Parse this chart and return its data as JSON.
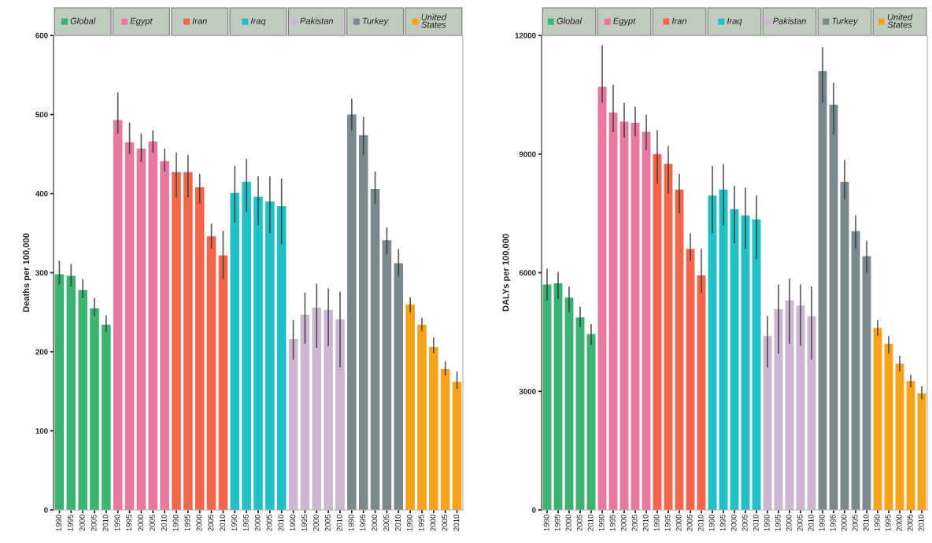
{
  "chart_data": [
    {
      "type": "bar",
      "legend": "top",
      "ylabel": "Deaths per 100,000",
      "categories": [
        "1990",
        "1995",
        "2000",
        "2005",
        "2010",
        "1990",
        "1995",
        "2000",
        "2005",
        "2010",
        "1990",
        "1995",
        "2000",
        "2005",
        "2010",
        "1990",
        "1995",
        "2000",
        "2005",
        "2010",
        "1990",
        "1995",
        "2000",
        "2005",
        "2010",
        "1990",
        "1995",
        "2000",
        "2005",
        "2010",
        "1990",
        "1995",
        "2000",
        "2005",
        "2010"
      ],
      "ylim": [
        0,
        600
      ],
      "yticks": [
        0,
        100,
        200,
        300,
        400,
        500,
        600
      ],
      "series": [
        {
          "name": "Global",
          "color": "#3cb371",
          "values": [
            298,
            296,
            278,
            255,
            234,
            null,
            null,
            null,
            null,
            null,
            null,
            null,
            null,
            null,
            null,
            null,
            null,
            null,
            null,
            null,
            null,
            null,
            null,
            null,
            null,
            null,
            null,
            null,
            null,
            null,
            null,
            null,
            null,
            null,
            null
          ],
          "errors": [
            [
              285,
              315
            ],
            [
              282,
              311
            ],
            [
              268,
              292
            ],
            [
              245,
              268
            ],
            [
              225,
              246
            ],
            null,
            null,
            null,
            null,
            null,
            null,
            null,
            null,
            null,
            null,
            null,
            null,
            null,
            null,
            null,
            null,
            null,
            null,
            null,
            null,
            null,
            null,
            null,
            null,
            null,
            null,
            null,
            null,
            null,
            null
          ]
        },
        {
          "name": "Egypt",
          "color": "#e8799e",
          "values": [
            null,
            null,
            null,
            null,
            null,
            493,
            465,
            457,
            466,
            441,
            null,
            null,
            null,
            null,
            null,
            null,
            null,
            null,
            null,
            null,
            null,
            null,
            null,
            null,
            null,
            null,
            null,
            null,
            null,
            null,
            null,
            null,
            null,
            null,
            null
          ],
          "errors": [
            null,
            null,
            null,
            null,
            null,
            [
              476,
              528
            ],
            [
              450,
              490
            ],
            [
              440,
              476
            ],
            [
              452,
              480
            ],
            [
              428,
              457
            ],
            null,
            null,
            null,
            null,
            null,
            null,
            null,
            null,
            null,
            null,
            null,
            null,
            null,
            null,
            null,
            null,
            null,
            null,
            null,
            null,
            null,
            null,
            null,
            null,
            null
          ]
        },
        {
          "name": "Iran",
          "color": "#f2674a",
          "values": [
            null,
            null,
            null,
            null,
            null,
            null,
            null,
            null,
            null,
            null,
            427,
            427,
            408,
            346,
            322,
            null,
            null,
            null,
            null,
            null,
            null,
            null,
            null,
            null,
            null,
            null,
            null,
            null,
            null,
            null,
            null,
            null,
            null,
            null,
            null
          ],
          "errors": [
            null,
            null,
            null,
            null,
            null,
            null,
            null,
            null,
            null,
            null,
            [
              395,
              452
            ],
            [
              395,
              449
            ],
            [
              387,
              425
            ],
            [
              330,
              362
            ],
            [
              292,
              353
            ],
            null,
            null,
            null,
            null,
            null,
            null,
            null,
            null,
            null,
            null,
            null,
            null,
            null,
            null,
            null,
            null,
            null,
            null,
            null,
            null
          ]
        },
        {
          "name": "Iraq",
          "color": "#1fc1c6",
          "values": [
            null,
            null,
            null,
            null,
            null,
            null,
            null,
            null,
            null,
            null,
            null,
            null,
            null,
            null,
            null,
            401,
            415,
            396,
            390,
            384,
            null,
            null,
            null,
            null,
            null,
            null,
            null,
            null,
            null,
            null,
            null,
            null,
            null,
            null,
            null
          ],
          "errors": [
            null,
            null,
            null,
            null,
            null,
            null,
            null,
            null,
            null,
            null,
            null,
            null,
            null,
            null,
            null,
            [
              363,
              435
            ],
            [
              377,
              444
            ],
            [
              360,
              422
            ],
            [
              350,
              422
            ],
            [
              336,
              419
            ],
            null,
            null,
            null,
            null,
            null,
            null,
            null,
            null,
            null,
            null,
            null,
            null,
            null,
            null,
            null
          ]
        },
        {
          "name": "Pakistan",
          "color": "#cdb6d2",
          "values": [
            null,
            null,
            null,
            null,
            null,
            null,
            null,
            null,
            null,
            null,
            null,
            null,
            null,
            null,
            null,
            null,
            null,
            null,
            null,
            null,
            216,
            247,
            256,
            253,
            241,
            null,
            null,
            null,
            null,
            null,
            null,
            null,
            null,
            null,
            null
          ],
          "errors": [
            null,
            null,
            null,
            null,
            null,
            null,
            null,
            null,
            null,
            null,
            null,
            null,
            null,
            null,
            null,
            null,
            null,
            null,
            null,
            null,
            [
              190,
              240
            ],
            [
              210,
              275
            ],
            [
              205,
              286
            ],
            [
              207,
              280
            ],
            [
              180,
              276
            ],
            null,
            null,
            null,
            null,
            null,
            null,
            null,
            null,
            null,
            null
          ]
        },
        {
          "name": "Turkey",
          "color": "#7a8a8c",
          "values": [
            null,
            null,
            null,
            null,
            null,
            null,
            null,
            null,
            null,
            null,
            null,
            null,
            null,
            null,
            null,
            null,
            null,
            null,
            null,
            null,
            null,
            null,
            null,
            null,
            null,
            500,
            474,
            406,
            341,
            312,
            null,
            null,
            null,
            null,
            null
          ],
          "errors": [
            null,
            null,
            null,
            null,
            null,
            null,
            null,
            null,
            null,
            null,
            null,
            null,
            null,
            null,
            null,
            null,
            null,
            null,
            null,
            null,
            null,
            null,
            null,
            null,
            null,
            [
              480,
              520
            ],
            [
              448,
              497
            ],
            [
              387,
              428
            ],
            [
              323,
              357
            ],
            [
              295,
              330
            ],
            null,
            null,
            null,
            null,
            null
          ]
        },
        {
          "name": "United States",
          "color": "#f7a21b",
          "values": [
            null,
            null,
            null,
            null,
            null,
            null,
            null,
            null,
            null,
            null,
            null,
            null,
            null,
            null,
            null,
            null,
            null,
            null,
            null,
            null,
            null,
            null,
            null,
            null,
            null,
            null,
            null,
            null,
            null,
            null,
            260,
            234,
            206,
            178,
            162
          ],
          "errors": [
            null,
            null,
            null,
            null,
            null,
            null,
            null,
            null,
            null,
            null,
            null,
            null,
            null,
            null,
            null,
            null,
            null,
            null,
            null,
            null,
            null,
            null,
            null,
            null,
            null,
            null,
            null,
            null,
            null,
            null,
            [
              250,
              269
            ],
            [
              226,
              243
            ],
            [
              198,
              218
            ],
            [
              170,
              188
            ],
            [
              153,
              175
            ]
          ]
        }
      ]
    },
    {
      "type": "bar",
      "legend": "top",
      "ylabel": "DALYs per 100,000",
      "categories": [
        "1990",
        "1995",
        "2000",
        "2005",
        "2010",
        "1990",
        "1995",
        "2000",
        "2005",
        "2010",
        "1990",
        "1995",
        "2000",
        "2005",
        "2010",
        "1990",
        "1995",
        "2000",
        "2005",
        "2010",
        "1990",
        "1995",
        "2000",
        "2005",
        "2010",
        "1990",
        "1995",
        "2000",
        "2005",
        "2010",
        "1990",
        "1995",
        "2000",
        "2005",
        "2010"
      ],
      "ylim": [
        0,
        12000
      ],
      "yticks": [
        0,
        3000,
        6000,
        9000,
        12000
      ],
      "series": [
        {
          "name": "Global",
          "color": "#3cb371",
          "values": [
            5700,
            5730,
            5370,
            4870,
            4450,
            null,
            null,
            null,
            null,
            null,
            null,
            null,
            null,
            null,
            null,
            null,
            null,
            null,
            null,
            null,
            null,
            null,
            null,
            null,
            null,
            null,
            null,
            null,
            null,
            null,
            null,
            null,
            null,
            null,
            null
          ],
          "errors": [
            [
              5300,
              6100
            ],
            [
              5330,
              6020
            ],
            [
              5000,
              5650
            ],
            [
              4620,
              5140
            ],
            [
              4180,
              4700
            ],
            null,
            null,
            null,
            null,
            null,
            null,
            null,
            null,
            null,
            null,
            null,
            null,
            null,
            null,
            null,
            null,
            null,
            null,
            null,
            null,
            null,
            null,
            null,
            null,
            null,
            null,
            null,
            null,
            null,
            null
          ]
        },
        {
          "name": "Egypt",
          "color": "#e8799e",
          "values": [
            null,
            null,
            null,
            null,
            null,
            10700,
            10050,
            9820,
            9790,
            9560,
            null,
            null,
            null,
            null,
            null,
            null,
            null,
            null,
            null,
            null,
            null,
            null,
            null,
            null,
            null,
            null,
            null,
            null,
            null,
            null,
            null,
            null,
            null,
            null,
            null
          ],
          "errors": [
            null,
            null,
            null,
            null,
            null,
            [
              10300,
              11750
            ],
            [
              9550,
              10750
            ],
            [
              9420,
              10300
            ],
            [
              9450,
              10200
            ],
            [
              9100,
              10000
            ],
            null,
            null,
            null,
            null,
            null,
            null,
            null,
            null,
            null,
            null,
            null,
            null,
            null,
            null,
            null,
            null,
            null,
            null,
            null,
            null,
            null,
            null,
            null,
            null,
            null
          ]
        },
        {
          "name": "Iran",
          "color": "#f2674a",
          "values": [
            null,
            null,
            null,
            null,
            null,
            null,
            null,
            null,
            null,
            null,
            9000,
            8750,
            8100,
            6600,
            5930,
            null,
            null,
            null,
            null,
            null,
            null,
            null,
            null,
            null,
            null,
            null,
            null,
            null,
            null,
            null,
            null,
            null,
            null,
            null,
            null
          ],
          "errors": [
            null,
            null,
            null,
            null,
            null,
            null,
            null,
            null,
            null,
            null,
            [
              8250,
              9600
            ],
            [
              8000,
              9200
            ],
            [
              7500,
              8500
            ],
            [
              6300,
              7000
            ],
            [
              5500,
              6600
            ],
            null,
            null,
            null,
            null,
            null,
            null,
            null,
            null,
            null,
            null,
            null,
            null,
            null,
            null,
            null,
            null,
            null,
            null,
            null,
            null
          ]
        },
        {
          "name": "Iraq",
          "color": "#1fc1c6",
          "values": [
            null,
            null,
            null,
            null,
            null,
            null,
            null,
            null,
            null,
            null,
            null,
            null,
            null,
            null,
            null,
            7950,
            8100,
            7600,
            7450,
            7350,
            null,
            null,
            null,
            null,
            null,
            null,
            null,
            null,
            null,
            null,
            null,
            null,
            null,
            null,
            null
          ],
          "errors": [
            null,
            null,
            null,
            null,
            null,
            null,
            null,
            null,
            null,
            null,
            null,
            null,
            null,
            null,
            null,
            [
              7000,
              8700
            ],
            [
              7200,
              8750
            ],
            [
              6750,
              8200
            ],
            [
              6600,
              8150
            ],
            [
              6350,
              7950
            ],
            null,
            null,
            null,
            null,
            null,
            null,
            null,
            null,
            null,
            null,
            null,
            null,
            null,
            null,
            null
          ]
        },
        {
          "name": "Pakistan",
          "color": "#cdb6d2",
          "values": [
            null,
            null,
            null,
            null,
            null,
            null,
            null,
            null,
            null,
            null,
            null,
            null,
            null,
            null,
            null,
            null,
            null,
            null,
            null,
            null,
            4400,
            5080,
            5300,
            5170,
            4900,
            null,
            null,
            null,
            null,
            null,
            null,
            null,
            null,
            null,
            null
          ],
          "errors": [
            null,
            null,
            null,
            null,
            null,
            null,
            null,
            null,
            null,
            null,
            null,
            null,
            null,
            null,
            null,
            null,
            null,
            null,
            null,
            null,
            [
              3600,
              4900
            ],
            [
              3950,
              5700
            ],
            [
              4200,
              5850
            ],
            [
              4150,
              5700
            ],
            [
              3800,
              5650
            ],
            null,
            null,
            null,
            null,
            null,
            null,
            null,
            null,
            null,
            null
          ]
        },
        {
          "name": "Turkey",
          "color": "#7a8a8c",
          "values": [
            null,
            null,
            null,
            null,
            null,
            null,
            null,
            null,
            null,
            null,
            null,
            null,
            null,
            null,
            null,
            null,
            null,
            null,
            null,
            null,
            null,
            null,
            null,
            null,
            null,
            11100,
            10250,
            8300,
            7050,
            6420,
            null,
            null,
            null,
            null,
            null
          ],
          "errors": [
            null,
            null,
            null,
            null,
            null,
            null,
            null,
            null,
            null,
            null,
            null,
            null,
            null,
            null,
            null,
            null,
            null,
            null,
            null,
            null,
            null,
            null,
            null,
            null,
            null,
            [
              10300,
              11700
            ],
            [
              9500,
              10800
            ],
            [
              7850,
              8850
            ],
            [
              6600,
              7450
            ],
            [
              6000,
              6800
            ],
            null,
            null,
            null,
            null,
            null
          ]
        },
        {
          "name": "United States",
          "color": "#f7a21b",
          "values": [
            null,
            null,
            null,
            null,
            null,
            null,
            null,
            null,
            null,
            null,
            null,
            null,
            null,
            null,
            null,
            null,
            null,
            null,
            null,
            null,
            null,
            null,
            null,
            null,
            null,
            null,
            null,
            null,
            null,
            null,
            4600,
            4200,
            3700,
            3260,
            2950
          ],
          "errors": [
            null,
            null,
            null,
            null,
            null,
            null,
            null,
            null,
            null,
            null,
            null,
            null,
            null,
            null,
            null,
            null,
            null,
            null,
            null,
            null,
            null,
            null,
            null,
            null,
            null,
            null,
            null,
            null,
            null,
            null,
            [
              4400,
              4800
            ],
            [
              3950,
              4400
            ],
            [
              3500,
              3900
            ],
            [
              3100,
              3420
            ],
            [
              2800,
              3130
            ]
          ]
        }
      ]
    }
  ]
}
